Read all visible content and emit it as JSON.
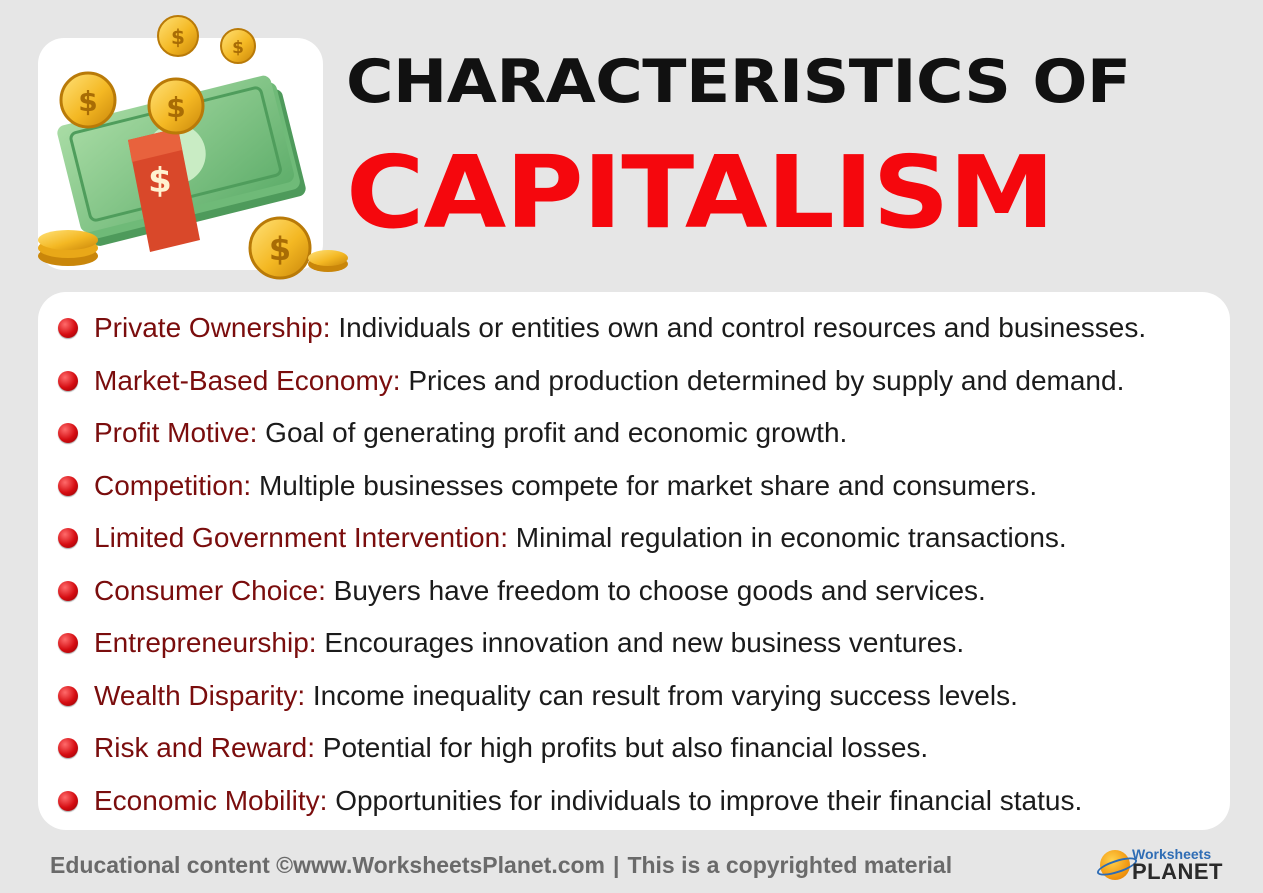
{
  "header": {
    "title_line1": "CHARACTERISTICS OF",
    "title_line2": "CAPITALISM"
  },
  "illustration": {
    "icons": [
      "money-stack-icon",
      "coin-icon"
    ],
    "coin_symbol": "$"
  },
  "items": [
    {
      "term": "Private Ownership:",
      "desc": "Individuals or entities own and control resources and businesses."
    },
    {
      "term": "Market-Based Economy:",
      "desc": "Prices and production determined by supply and demand."
    },
    {
      "term": "Profit Motive:",
      "desc": "Goal of generating profit and economic growth."
    },
    {
      "term": "Competition:",
      "desc": "Multiple businesses compete for market share and consumers."
    },
    {
      "term": "Limited Government Intervention:",
      "desc": "Minimal regulation in economic transactions."
    },
    {
      "term": "Consumer Choice:",
      "desc": "Buyers have freedom to choose goods and services."
    },
    {
      "term": "Entrepreneurship:",
      "desc": "Encourages innovation and new business ventures."
    },
    {
      "term": "Wealth Disparity:",
      "desc": "Income inequality can result from varying success levels."
    },
    {
      "term": "Risk and Reward:",
      "desc": "Potential for high profits but also financial losses."
    },
    {
      "term": "Economic Mobility:",
      "desc": "Opportunities for individuals to improve their financial status."
    }
  ],
  "footer": {
    "left_text": "Educational content ©www.WorksheetsPlanet.com",
    "separator": "|",
    "right_text": "This is a copyrighted material",
    "logo_line1": "Worksheets",
    "logo_line2": "PLANET"
  },
  "colors": {
    "title_black": "#111111",
    "title_red": "#f5070d",
    "term": "#7a0d0d",
    "bullet": "#d50d12",
    "background": "#e6e6e6"
  }
}
